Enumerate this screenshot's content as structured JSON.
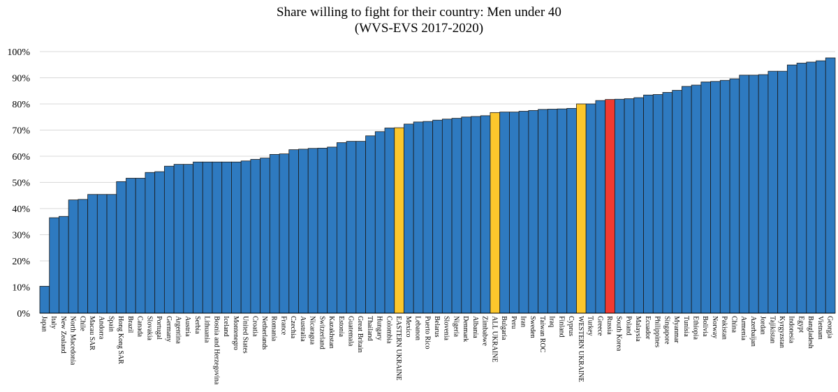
{
  "chart_data": {
    "type": "bar",
    "title": "Share willing to fight for their country: Men under 40",
    "subtitle": "(WVS-EVS 2017-2020)",
    "xlabel": "",
    "ylabel": "",
    "ylim": [
      0,
      100
    ],
    "y_ticks": [
      "0%",
      "10%",
      "20%",
      "30%",
      "40%",
      "50%",
      "60%",
      "70%",
      "80%",
      "90%",
      "100%"
    ],
    "grid": "horizontal",
    "legend": "none",
    "colors": {
      "default": "#2e7ac0",
      "highlight_ukraine": "#fcc72c",
      "highlight_russia": "#f23a32",
      "edge": "#1a1a1a",
      "grid": "#d9d9d9"
    },
    "categories": [
      "Japan",
      "Italy",
      "New Zealand",
      "North Macedonia",
      "Chile",
      "Macau SAR",
      "Andorra",
      "Spain",
      "Hong Kong SAR",
      "Brazil",
      "Canada",
      "Slovakia",
      "Portugal",
      "Germany",
      "Argentina",
      "Austria",
      "Serbia",
      "Lithuania",
      "Bosnia and Herzegovina",
      "Iceland",
      "Montenegro",
      "United States",
      "Croatia",
      "Netherlands",
      "Romania",
      "France",
      "Czechia",
      "Australia",
      "Nicaragua",
      "Switzerland",
      "Kazakhstan",
      "Estonia",
      "Guatemala",
      "Great Britain",
      "Thailand",
      "Hungary",
      "Colombia",
      "EASTERN UKRAINE",
      "Mexico",
      "Lebanon",
      "Puerto Rico",
      "Belarus",
      "Slovenia",
      "Nigeria",
      "Denmark",
      "Albania",
      "Zimbabwe",
      "ALL UKRAINE",
      "Bulgaria",
      "Peru",
      "Iran",
      "Sweden",
      "Taiwan ROC",
      "Iraq",
      "Finland",
      "Cyprus",
      "WESTERN UKRAINE",
      "Turkey",
      "Greece",
      "Russia",
      "South Korea",
      "Poland",
      "Malaysia",
      "Ecuador",
      "Philippines",
      "Singapore",
      "Myanmar",
      "Tunisia",
      "Ethiopia",
      "Bolivia",
      "Norway",
      "Pakistan",
      "China",
      "Armenia",
      "Azerbaijan",
      "Jordan",
      "Tajikistan",
      "Kyrgyzstan",
      "Indonesia",
      "Egypt",
      "Bangladesh",
      "Vietnam",
      "Georgia"
    ],
    "values": [
      10.3,
      36.5,
      37,
      43.3,
      43.5,
      45.4,
      45.4,
      45.4,
      50.3,
      51.6,
      51.6,
      53.8,
      54.1,
      56.2,
      56.9,
      56.9,
      57.8,
      57.8,
      57.8,
      57.8,
      57.8,
      58.2,
      58.8,
      59.3,
      60.7,
      60.9,
      62.5,
      62.7,
      63,
      63.1,
      63.5,
      65.2,
      65.7,
      65.7,
      67.8,
      69.4,
      70.8,
      70.9,
      72.3,
      73.1,
      73.3,
      73.8,
      74.2,
      74.5,
      75,
      75.2,
      75.5,
      76.7,
      76.9,
      76.9,
      77.2,
      77.5,
      77.9,
      78,
      78.1,
      78.3,
      80,
      80,
      81.3,
      81.7,
      81.8,
      82,
      82.4,
      83.4,
      83.6,
      84.4,
      85.2,
      86.7,
      87.2,
      88.4,
      88.6,
      89,
      89.6,
      91,
      91,
      91.2,
      92.5,
      92.5,
      94.9,
      95.6,
      96,
      96.5,
      97.6
    ],
    "highlight": {
      "EASTERN UKRAINE": "highlight_ukraine",
      "ALL UKRAINE": "highlight_ukraine",
      "WESTERN UKRAINE": "highlight_ukraine",
      "Russia": "highlight_russia"
    }
  }
}
